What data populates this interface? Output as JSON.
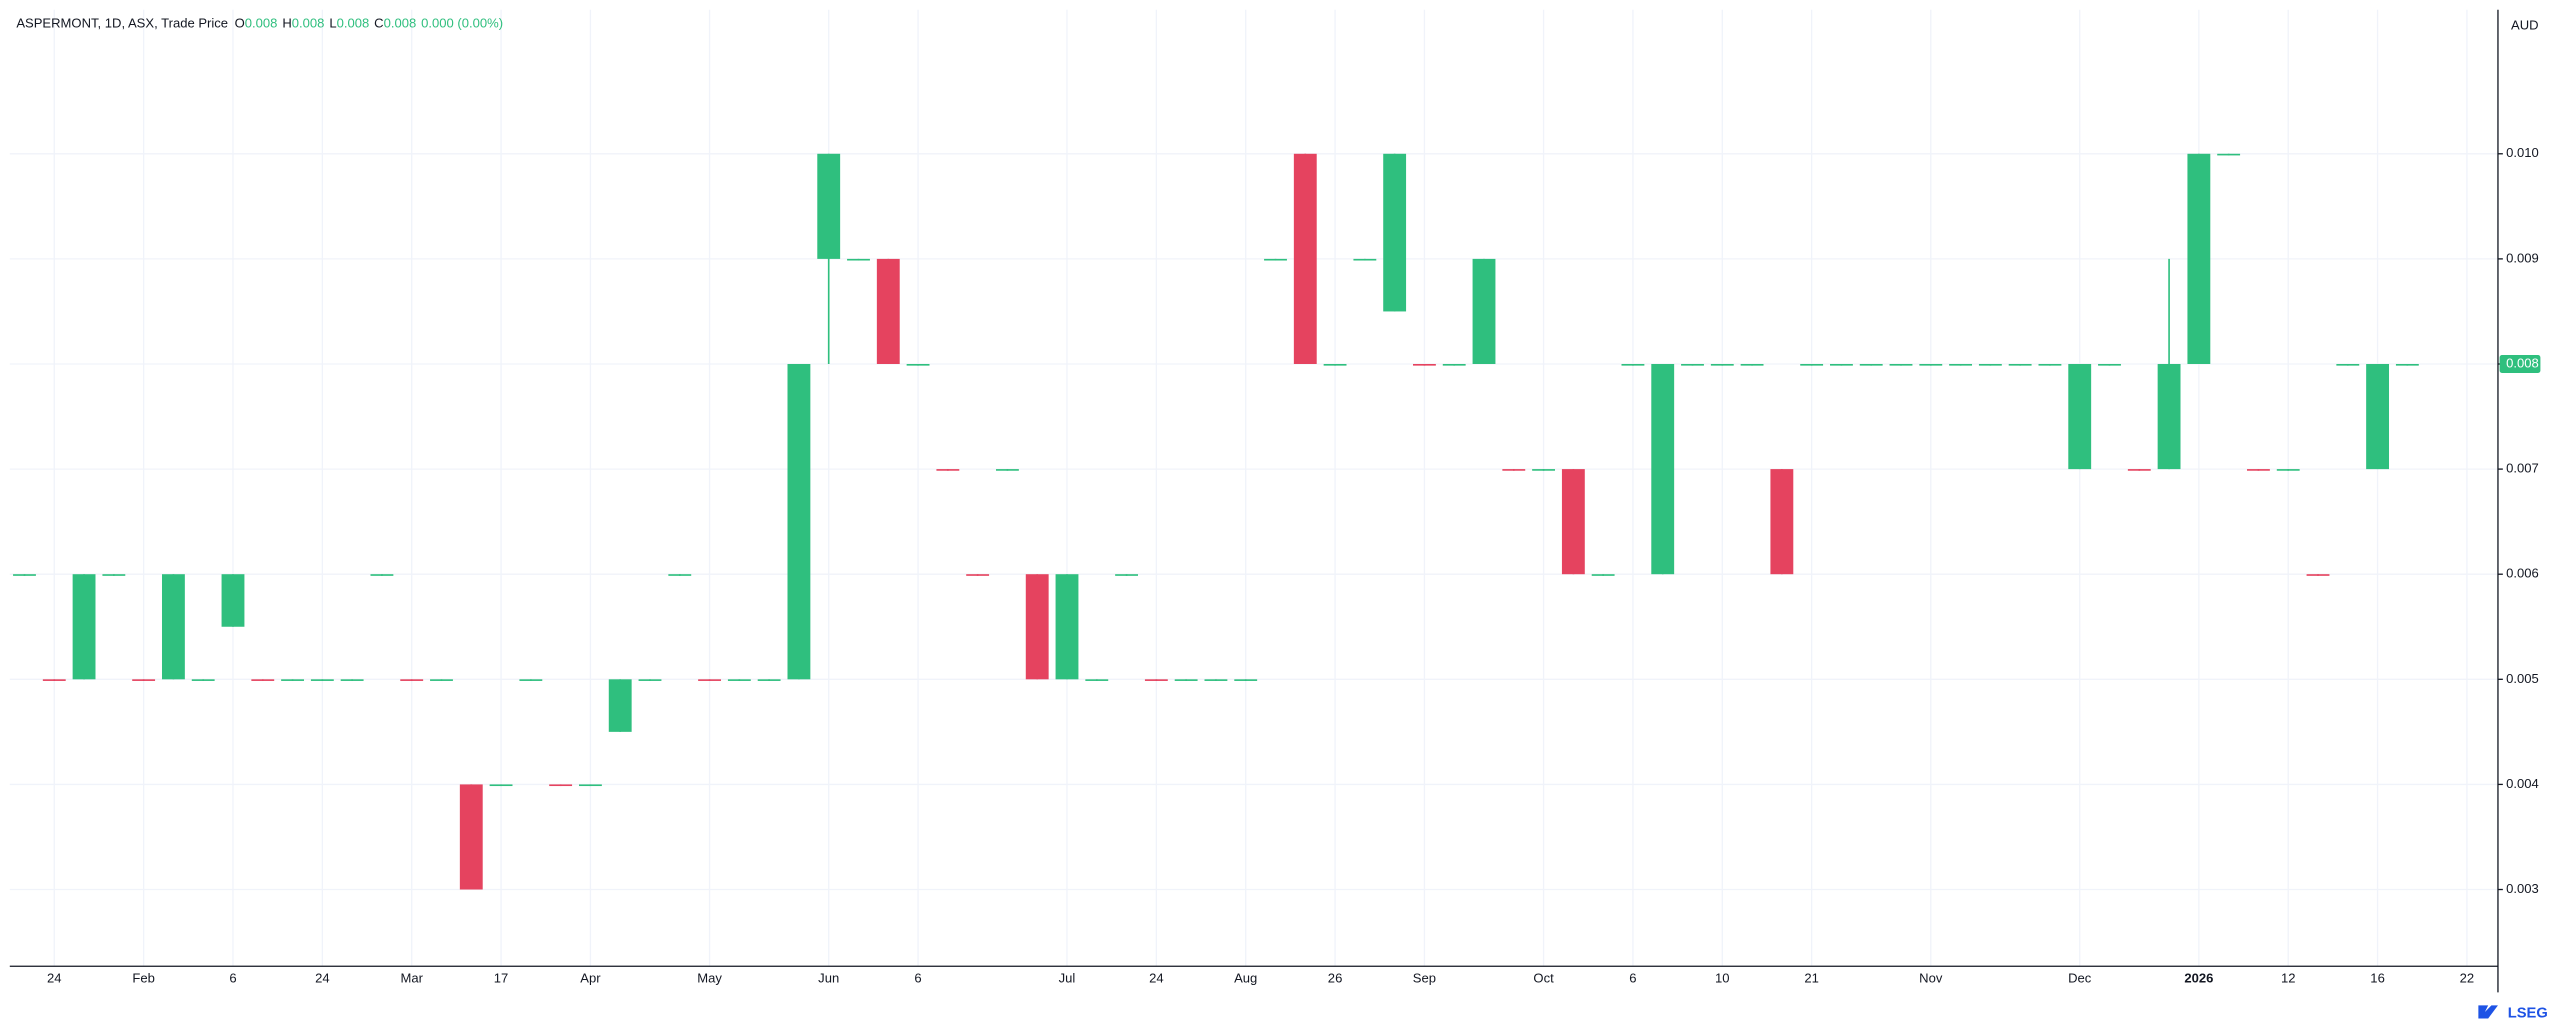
{
  "header": {
    "title": "ASPERMONT, 1D, ASX, Trade Price",
    "ohlc": [
      {
        "label": "O",
        "value": "0.008"
      },
      {
        "label": "H",
        "value": "0.008"
      },
      {
        "label": "L",
        "value": "0.008"
      },
      {
        "label": "C",
        "value": "0.008"
      }
    ],
    "change": "0.000 (0.00%)"
  },
  "currency": "AUD",
  "logo": "LSEG",
  "chart_data": {
    "type": "candlestick",
    "categories": [
      null,
      "24",
      null,
      null,
      "Feb",
      null,
      null,
      "6",
      null,
      null,
      "24",
      null,
      null,
      "Mar",
      null,
      null,
      "17",
      null,
      null,
      "Apr",
      null,
      null,
      null,
      "May",
      null,
      null,
      null,
      "Jun",
      null,
      null,
      "6",
      null,
      null,
      null,
      null,
      "Jul",
      null,
      null,
      "24",
      null,
      null,
      "Aug",
      null,
      null,
      "26",
      null,
      null,
      "Sep",
      null,
      null,
      null,
      "Oct",
      null,
      null,
      "6",
      null,
      null,
      "10",
      null,
      null,
      "21",
      null,
      null,
      null,
      "Nov",
      null,
      null,
      null,
      null,
      "Dec",
      null,
      null,
      null,
      "2026",
      null,
      null,
      "12",
      null,
      null,
      "16",
      null,
      null,
      "22"
    ],
    "open": [
      0.006,
      0.005,
      0.005,
      0.006,
      0.005,
      0.005,
      0.005,
      0.0055,
      0.005,
      0.005,
      0.005,
      0.005,
      0.006,
      0.005,
      0.005,
      0.004,
      0.004,
      0.005,
      0.004,
      0.004,
      0.0045,
      0.005,
      0.006,
      0.005,
      0.005,
      0.005,
      0.005,
      0.009,
      0.009,
      0.009,
      0.008,
      0.007,
      0.006,
      0.007,
      0.006,
      0.005,
      0.005,
      0.006,
      0.005,
      0.005,
      0.005,
      0.005,
      0.009,
      0.01,
      0.008,
      0.009,
      0.0085,
      0.008,
      0.008,
      0.008,
      0.007,
      0.007,
      0.007,
      0.006,
      0.008,
      0.006,
      0.008,
      0.008,
      0.008,
      0.007,
      0.008,
      0.008,
      0.008,
      0.008,
      0.008,
      0.008,
      0.008,
      0.008,
      0.008,
      0.007,
      0.008,
      0.007,
      0.007,
      0.008,
      0.01,
      0.007,
      0.007,
      0.006,
      0.008,
      0.007,
      0.008,
      null,
      null
    ],
    "high": [
      0.006,
      0.005,
      0.006,
      0.006,
      0.005,
      0.006,
      0.005,
      0.006,
      0.005,
      0.005,
      0.005,
      0.005,
      0.006,
      0.005,
      0.005,
      0.004,
      0.004,
      0.005,
      0.004,
      0.004,
      0.005,
      0.005,
      0.006,
      0.005,
      0.005,
      0.005,
      0.008,
      0.01,
      0.009,
      0.009,
      0.008,
      0.007,
      0.006,
      0.007,
      0.006,
      0.006,
      0.005,
      0.006,
      0.005,
      0.005,
      0.005,
      0.005,
      0.009,
      0.01,
      0.008,
      0.009,
      0.01,
      0.008,
      0.008,
      0.009,
      0.007,
      0.007,
      0.007,
      0.006,
      0.008,
      0.008,
      0.008,
      0.008,
      0.008,
      0.007,
      0.008,
      0.008,
      0.008,
      0.008,
      0.008,
      0.008,
      0.008,
      0.008,
      0.008,
      0.008,
      0.008,
      0.007,
      0.009,
      0.01,
      0.01,
      0.007,
      0.007,
      0.006,
      0.008,
      0.008,
      0.008,
      null,
      null
    ],
    "low": [
      0.006,
      0.005,
      0.005,
      0.006,
      0.005,
      0.005,
      0.005,
      0.0055,
      0.005,
      0.005,
      0.005,
      0.005,
      0.006,
      0.005,
      0.005,
      0.003,
      0.004,
      0.005,
      0.004,
      0.004,
      0.0045,
      0.005,
      0.006,
      0.005,
      0.005,
      0.005,
      0.005,
      0.008,
      0.009,
      0.008,
      0.008,
      0.007,
      0.006,
      0.007,
      0.005,
      0.005,
      0.005,
      0.006,
      0.005,
      0.005,
      0.005,
      0.005,
      0.009,
      0.008,
      0.008,
      0.009,
      0.0085,
      0.008,
      0.008,
      0.008,
      0.007,
      0.007,
      0.006,
      0.006,
      0.008,
      0.006,
      0.008,
      0.008,
      0.008,
      0.006,
      0.008,
      0.008,
      0.008,
      0.008,
      0.008,
      0.008,
      0.008,
      0.008,
      0.008,
      0.007,
      0.008,
      0.007,
      0.007,
      0.008,
      0.01,
      0.007,
      0.007,
      0.006,
      0.008,
      0.007,
      0.008,
      null,
      null
    ],
    "close": [
      0.006,
      0.005,
      0.006,
      0.006,
      0.005,
      0.006,
      0.005,
      0.006,
      0.005,
      0.005,
      0.005,
      0.005,
      0.006,
      0.005,
      0.005,
      0.003,
      0.004,
      0.005,
      0.004,
      0.004,
      0.005,
      0.005,
      0.006,
      0.005,
      0.005,
      0.005,
      0.008,
      0.01,
      0.009,
      0.008,
      0.008,
      0.007,
      0.006,
      0.007,
      0.005,
      0.006,
      0.005,
      0.006,
      0.005,
      0.005,
      0.005,
      0.005,
      0.009,
      0.008,
      0.008,
      0.009,
      0.01,
      0.008,
      0.008,
      0.009,
      0.007,
      0.007,
      0.006,
      0.006,
      0.008,
      0.008,
      0.008,
      0.008,
      0.008,
      0.006,
      0.008,
      0.008,
      0.008,
      0.008,
      0.008,
      0.008,
      0.008,
      0.008,
      0.008,
      0.008,
      0.008,
      0.007,
      0.008,
      0.01,
      0.01,
      0.007,
      0.007,
      0.006,
      0.008,
      0.008,
      0.008,
      null,
      null
    ],
    "directions": [
      "up",
      "down",
      "up",
      "up",
      "down",
      "up",
      "up",
      "up",
      "down",
      "up",
      "up",
      "up",
      "up",
      "down",
      "up",
      "down",
      "up",
      "up",
      "down",
      "up",
      "up",
      "up",
      "up",
      "down",
      "up",
      "up",
      "up",
      "up",
      "up",
      "down",
      "up",
      "down",
      "down",
      "up",
      "down",
      "up",
      "up",
      "up",
      "down",
      "up",
      "up",
      "up",
      "up",
      "down",
      "up",
      "up",
      "up",
      "down",
      "up",
      "up",
      "down",
      "up",
      "down",
      "up",
      "up",
      "up",
      "up",
      "up",
      "up",
      "down",
      "up",
      "up",
      "up",
      "up",
      "up",
      "up",
      "up",
      "up",
      "up",
      "up",
      "up",
      "down",
      "up",
      "up",
      "up",
      "down",
      "up",
      "down",
      "up",
      "up",
      "up",
      null,
      null
    ],
    "up_color": "#2fbf7e",
    "down_color": "#e5435f",
    "ylim": [
      0.00227,
      0.01137
    ],
    "yticks": [
      0.003,
      0.004,
      0.005,
      0.006,
      0.007,
      0.008,
      0.009,
      {
        "value": 0.01,
        "label": "0.010"
      }
    ],
    "last_price": {
      "value": 0.008,
      "label": "0.008"
    },
    "grid": true
  }
}
